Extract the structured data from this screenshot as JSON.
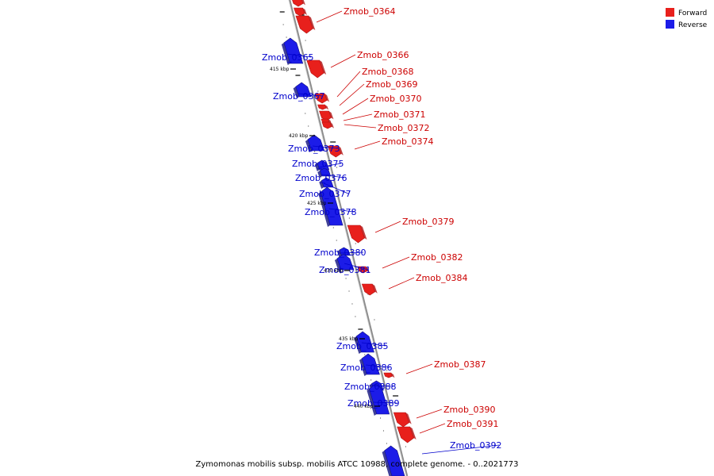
{
  "colors": {
    "forward": "#e8201c",
    "forward_dark": "#b01010",
    "reverse": "#1c1ce8",
    "reverse_dark": "#10107e",
    "axis": "#8c8c8c",
    "label_forward": "#cc0000",
    "label_reverse": "#0000cc"
  },
  "legend": {
    "forward": "Forward",
    "reverse": "Reverse"
  },
  "caption": "Zymomonas mobilis subsp. mobilis ATCC 10988, complete genome. - 0..2021773",
  "kbp_marks": [
    "415 kbp",
    "420 kbp",
    "425 kbp",
    "430 kbp",
    "435 kbp",
    "440 kbp"
  ],
  "genes": [
    {
      "name": "",
      "strand": "forward"
    },
    {
      "name": "",
      "strand": "forward"
    },
    {
      "name": "Zmob_0364",
      "strand": "forward"
    },
    {
      "name": "Zmob_0365",
      "strand": "reverse"
    },
    {
      "name": "Zmob_0366",
      "strand": "forward"
    },
    {
      "name": "Zmob_0367",
      "strand": "reverse"
    },
    {
      "name": "Zmob_0368",
      "strand": "forward"
    },
    {
      "name": "Zmob_0369",
      "strand": "forward"
    },
    {
      "name": "Zmob_0370",
      "strand": "forward"
    },
    {
      "name": "Zmob_0371",
      "strand": "forward"
    },
    {
      "name": "Zmob_0372",
      "strand": "forward"
    },
    {
      "name": "Zmob_0373",
      "strand": "reverse"
    },
    {
      "name": "Zmob_0374",
      "strand": "forward"
    },
    {
      "name": "Zmob_0375",
      "strand": "reverse"
    },
    {
      "name": "Zmob_0376",
      "strand": "reverse"
    },
    {
      "name": "Zmob_0377",
      "strand": "reverse"
    },
    {
      "name": "Zmob_0378",
      "strand": "reverse"
    },
    {
      "name": "Zmob_0379",
      "strand": "forward"
    },
    {
      "name": "Zmob_0380",
      "strand": "reverse"
    },
    {
      "name": "Zmob_0381",
      "strand": "reverse"
    },
    {
      "name": "Zmob_0382",
      "strand": "forward"
    },
    {
      "name": "Zmob_0384",
      "strand": "forward"
    },
    {
      "name": "Zmob_0385",
      "strand": "reverse"
    },
    {
      "name": "Zmob_0386",
      "strand": "reverse"
    },
    {
      "name": "Zmob_0387",
      "strand": "forward"
    },
    {
      "name": "Zmob_0388",
      "strand": "reverse"
    },
    {
      "name": "Zmob_0389",
      "strand": "reverse"
    },
    {
      "name": "Zmob_0390",
      "strand": "forward"
    },
    {
      "name": "Zmob_0391",
      "strand": "forward"
    },
    {
      "name": "Zmob_0392",
      "strand": "reverse"
    }
  ]
}
